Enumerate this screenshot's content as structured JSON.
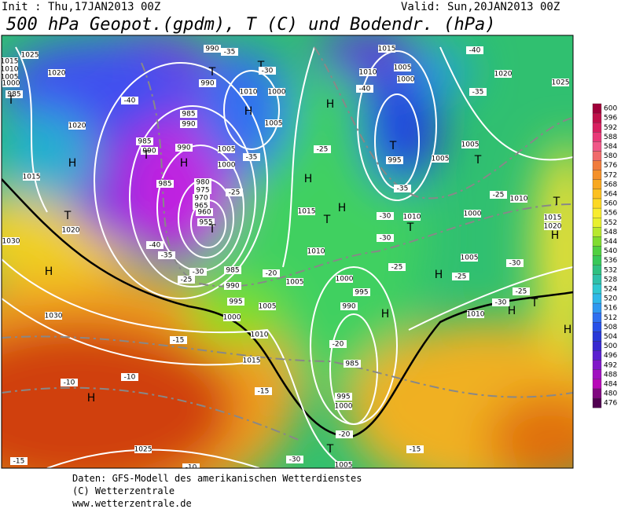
{
  "header": {
    "init": "Init : Thu,17JAN2013 00Z",
    "valid": "Valid: Sun,20JAN2013 00Z",
    "title": "500 hPa Geopot.(gpdm), T (C) und Bodendr. (hPa)"
  },
  "colorbar": {
    "ticks": [
      600,
      596,
      592,
      588,
      584,
      580,
      576,
      572,
      568,
      564,
      560,
      556,
      552,
      548,
      544,
      540,
      536,
      532,
      528,
      524,
      520,
      516,
      512,
      508,
      504,
      500,
      496,
      492,
      488,
      484,
      480,
      476
    ]
  },
  "map_labels": [
    "1025",
    "1015",
    "1010",
    "1005",
    "1000",
    "985",
    "T",
    "1020",
    "1020",
    "H",
    "1015",
    "T",
    "1020",
    "1030",
    "H",
    "1030",
    "-40",
    "985",
    "990",
    "T",
    "990",
    "H",
    "985",
    "990",
    "985",
    "980",
    "975",
    "970",
    "965",
    "960",
    "955",
    "T",
    "-35",
    "-40",
    "-30",
    "-25",
    "990",
    "990",
    "T",
    "-35",
    "T",
    "-30",
    "1010",
    "1000",
    "H",
    "1005",
    "1005",
    "1000",
    "-35",
    "-25",
    "1015",
    "H",
    "-25",
    "H",
    "T",
    "H",
    "1010",
    "985",
    "990",
    "-20",
    "1005",
    "1000",
    "1005",
    "995",
    "1010",
    "1015",
    "-15",
    "-10",
    "-10",
    "H",
    "-15",
    "1025",
    "-15",
    "-10",
    "1000",
    "995",
    "990",
    "H",
    "-20",
    "985",
    "995",
    "1000",
    "-20",
    "T",
    "1005",
    "-15",
    "-30",
    "1015",
    "1010",
    "1005",
    "1000",
    "-40",
    "T",
    "995",
    "-35",
    "1005",
    "T",
    "1010",
    "T",
    "1000",
    "1005",
    "-40",
    "-35",
    "1020",
    "1025",
    "-25",
    "1010",
    "-30",
    "-25",
    "H",
    "1005",
    "1010",
    "H",
    "-30",
    "-25",
    "T",
    "T",
    "1015",
    "1020",
    "H",
    "H",
    "-30",
    "-30",
    "-25"
  ],
  "footer": {
    "source": "Daten: GFS-Modell des amerikanischen Wetterdienstes",
    "copyright": "(C) Wetterzentrale",
    "url": "www.wetterzentrale.de"
  }
}
